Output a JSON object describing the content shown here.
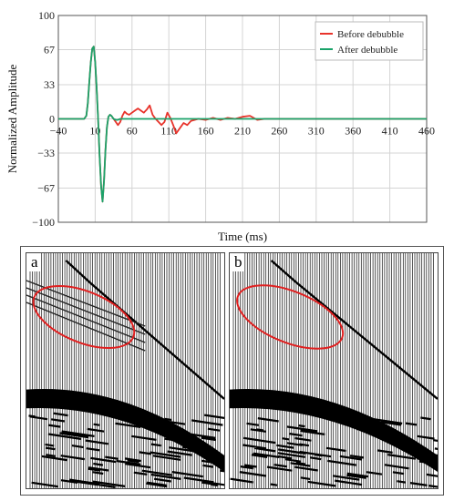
{
  "chart_data": {
    "type": "line",
    "title": "",
    "xlabel": "Time (ms)",
    "ylabel": "Normalized Amplitude",
    "xlim": [
      -40,
      460
    ],
    "ylim": [
      -100,
      100
    ],
    "x_ticks": [
      "-40",
      "10",
      "60",
      "110",
      "160",
      "210",
      "260",
      "310",
      "360",
      "410",
      "460"
    ],
    "y_ticks": [
      "100",
      "67",
      "33",
      "0",
      "-33",
      "-67",
      "-100"
    ],
    "grid": true,
    "legend_position": "top-right",
    "series": [
      {
        "name": "Before debubble",
        "color": "#e8332b",
        "x": [
          -40,
          -20,
          -5,
          -2,
          0,
          2,
          4,
          6,
          8,
          10,
          12,
          14,
          16,
          18,
          20,
          22,
          24,
          26,
          28,
          30,
          32,
          35,
          38,
          41,
          44,
          47,
          50,
          53,
          56,
          60,
          64,
          68,
          72,
          76,
          80,
          84,
          88,
          92,
          96,
          100,
          104,
          108,
          112,
          116,
          120,
          125,
          130,
          135,
          140,
          145,
          150,
          160,
          170,
          180,
          190,
          200,
          210,
          220,
          230,
          240,
          260,
          280,
          300,
          320,
          340,
          360,
          380,
          400,
          420,
          440,
          460
        ],
        "y": [
          0,
          0,
          0,
          3,
          15,
          35,
          55,
          68,
          70,
          55,
          30,
          0,
          -35,
          -65,
          -80,
          -60,
          -30,
          -8,
          2,
          4,
          3,
          0,
          -3,
          -6,
          -3,
          3,
          7,
          5,
          4,
          6,
          8,
          10,
          8,
          6,
          9,
          13,
          4,
          0,
          -3,
          -6,
          -3,
          6,
          1,
          -6,
          -14,
          -9,
          -4,
          -6,
          -2,
          -1,
          0,
          -1,
          1,
          -1,
          1,
          0,
          2,
          3,
          -1,
          0,
          0,
          0,
          0,
          0,
          0,
          0,
          0,
          0,
          0,
          0,
          0
        ]
      },
      {
        "name": "After debubble",
        "color": "#1aa36a",
        "x": [
          -40,
          -20,
          -5,
          -2,
          0,
          2,
          4,
          6,
          8,
          10,
          12,
          14,
          16,
          18,
          20,
          22,
          24,
          26,
          28,
          30,
          32,
          35,
          38,
          41,
          44,
          47,
          50,
          55,
          60,
          70,
          80,
          100,
          120,
          160,
          200,
          260,
          320,
          380,
          460
        ],
        "y": [
          0,
          0,
          0,
          3,
          15,
          35,
          55,
          68,
          70,
          55,
          30,
          0,
          -35,
          -65,
          -80,
          -60,
          -30,
          -8,
          2,
          4,
          3,
          0,
          -1,
          -1,
          0,
          0,
          0,
          0,
          0,
          0,
          0,
          0,
          0,
          0,
          0,
          0,
          0,
          0,
          0
        ]
      }
    ]
  },
  "seismic_panels": [
    {
      "label": "a"
    },
    {
      "label": "b"
    }
  ]
}
